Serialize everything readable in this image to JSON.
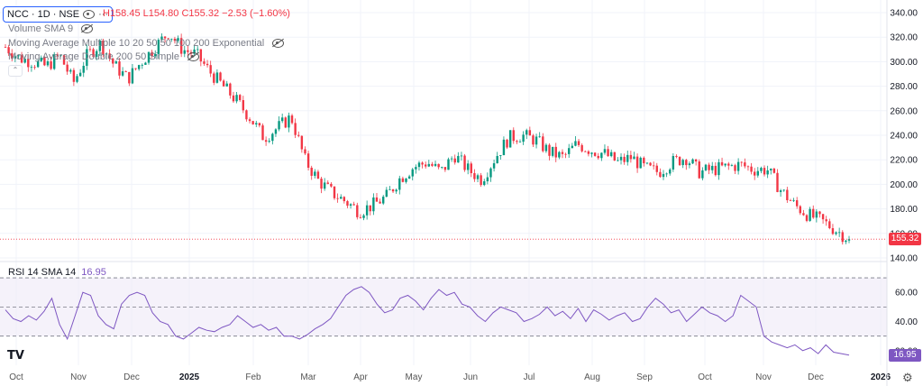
{
  "header": {
    "symbol": "NCC · 1D · NSE",
    "ohlc_high": "H158.45",
    "ohlc_low": "L154.80",
    "ohlc_close": "C155.32",
    "ohlc_change": "−2.53 (−1.60%)"
  },
  "indicators": {
    "volume": "Volume SMA 9",
    "ma_multiple": "Moving Average Multiple 10 20 50 50 100 200 Exponential",
    "ma_double": "Moving Average Double 200 50 Simple",
    "rsi_label": "RSI 14 SMA 14",
    "rsi_value": "16.95"
  },
  "price_tag": "155.32",
  "rsi_tag": "16.95",
  "colors": {
    "up": "#089981",
    "down": "#f23645",
    "rsi": "#7e57c2",
    "rsi_band": "#ede7f6"
  },
  "chart_data": [
    {
      "type": "candlestick",
      "title": "NCC · 1D · NSE",
      "ylim": [
        140,
        340
      ],
      "y_ticks": [
        "340.00",
        "320.00",
        "300.00",
        "280.00",
        "260.00",
        "240.00",
        "220.00",
        "200.00",
        "180.00",
        "160.00",
        "140.00"
      ],
      "x_ticks": [
        "Oct",
        "Nov",
        "Dec",
        "2025",
        "Feb",
        "Mar",
        "Apr",
        "May",
        "Jun",
        "Jul",
        "Aug",
        "Sep",
        "Oct",
        "Nov",
        "Dec",
        "2026"
      ],
      "close_path": [
        [
          "Oct",
          312
        ],
        [
          "Oct",
          303
        ],
        [
          "Oct",
          300
        ],
        [
          "Oct",
          296
        ],
        [
          "Nov",
          305
        ],
        [
          "Nov",
          283
        ],
        [
          "Nov",
          305
        ],
        [
          "Nov",
          315
        ],
        [
          "Nov",
          297
        ],
        [
          "Dec",
          286
        ],
        [
          "Dec",
          300
        ],
        [
          "Dec",
          312
        ],
        [
          "Dec",
          324
        ],
        [
          "Dec",
          310
        ],
        [
          "Dec",
          306
        ],
        [
          "Dec",
          292
        ],
        [
          "2025",
          280
        ],
        [
          "2025",
          268
        ],
        [
          "2025",
          254
        ],
        [
          "2025",
          238
        ],
        [
          "Feb",
          246
        ],
        [
          "Feb",
          255
        ],
        [
          "Feb",
          220
        ],
        [
          "Feb",
          203
        ],
        [
          "Feb",
          193
        ],
        [
          "Mar",
          186
        ],
        [
          "Mar",
          178
        ],
        [
          "Mar",
          183
        ],
        [
          "Mar",
          190
        ],
        [
          "Apr",
          205
        ],
        [
          "Apr",
          214
        ],
        [
          "Apr",
          218
        ],
        [
          "Apr",
          210
        ],
        [
          "May",
          224
        ],
        [
          "May",
          212
        ],
        [
          "May",
          204
        ],
        [
          "May",
          222
        ],
        [
          "Jun",
          238
        ],
        [
          "Jun",
          240
        ],
        [
          "Jun",
          236
        ],
        [
          "Jul",
          226
        ],
        [
          "Jul",
          222
        ],
        [
          "Jul",
          233
        ],
        [
          "Jul",
          228
        ],
        [
          "Aug",
          225
        ],
        [
          "Aug",
          218
        ],
        [
          "Aug",
          222
        ],
        [
          "Aug",
          213
        ],
        [
          "Sep",
          210
        ],
        [
          "Sep",
          218
        ],
        [
          "Sep",
          222
        ],
        [
          "Sep",
          210
        ],
        [
          "Oct",
          212
        ],
        [
          "Oct",
          214
        ],
        [
          "Oct",
          216
        ],
        [
          "Oct",
          212
        ],
        [
          "Nov",
          212
        ],
        [
          "Nov",
          195
        ],
        [
          "Nov",
          183
        ],
        [
          "Nov",
          175
        ],
        [
          "Dec",
          170
        ],
        [
          "Dec",
          163
        ],
        [
          "Dec",
          155.32
        ]
      ],
      "last_close": 155.32
    },
    {
      "type": "line",
      "title": "RSI 14 SMA 14",
      "ylim": [
        10,
        75
      ],
      "y_ticks": [
        "60.00",
        "40.00",
        "20.00"
      ],
      "bands": [
        30,
        50,
        70
      ],
      "series": [
        {
          "name": "RSI",
          "values": [
            48,
            42,
            40,
            44,
            41,
            47,
            56,
            38,
            28,
            44,
            60,
            58,
            44,
            38,
            35,
            52,
            58,
            60,
            58,
            46,
            40,
            38,
            30,
            28,
            32,
            36,
            34,
            33,
            36,
            38,
            44,
            40,
            36,
            38,
            34,
            36,
            30,
            30,
            28,
            31,
            35,
            38,
            42,
            50,
            58,
            62,
            64,
            60,
            52,
            46,
            48,
            56,
            58,
            54,
            48,
            56,
            62,
            58,
            60,
            52,
            50,
            44,
            40,
            46,
            50,
            48,
            46,
            40,
            42,
            45,
            50,
            44,
            47,
            42,
            49,
            40,
            48,
            45,
            41,
            44,
            46,
            40,
            42,
            50,
            56,
            52,
            46,
            48,
            40,
            45,
            50,
            46,
            44,
            40,
            44,
            58,
            54,
            50,
            30,
            26,
            24,
            22,
            24,
            20,
            22,
            18,
            24,
            19,
            18,
            16.95
          ]
        }
      ],
      "last_value": 16.95
    }
  ]
}
